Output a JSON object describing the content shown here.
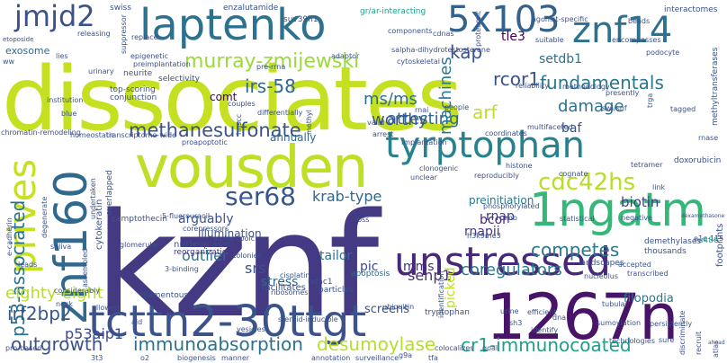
{
  "words": [
    "kznf",
    "dissociates",
    "vousden",
    "1267n",
    "tcttn2-30ttgt",
    "znf160",
    "laptenko",
    "1ngatm",
    "unstressed",
    "tyrptophan",
    "prives",
    "5x103",
    "znf14",
    "jmjd2",
    "ser68",
    "cdc42hs",
    "murray-zmijewski",
    "irs-58",
    "methanesulfonate",
    "p53-associated",
    "immunoabsorption",
    "desumoylase",
    "cr1-immunocoated",
    "outgrowth",
    "irf2bp2",
    "eighty-eight",
    "coregulators",
    "competes",
    "fundamentals",
    "rcor1",
    "kap",
    "tle3",
    "setdb1",
    "attesting",
    "worthy",
    "ms/ms",
    "machines",
    "arf",
    "damage",
    "baf",
    "biotin",
    "senp1",
    "p53aip1",
    "krab-type",
    "arguably",
    "outlier",
    "srs",
    "stress",
    "tailor",
    "pic",
    "mms",
    "bcor",
    "rnap",
    "rnapii",
    "picked",
    "preinitiation",
    "n1e-115",
    "filopodia",
    "screens",
    "comt",
    "annually",
    "illumination",
    "nucleoplasm",
    "reorganization",
    "hdac1",
    "apoptosis",
    "particles",
    "facilitates",
    "filamentous",
    "exosome",
    "etoposide",
    "swiss",
    "enzalutamide",
    "suv39h1",
    "gr/ar-interacting",
    "interactomes",
    "methyltransferases",
    "doxorubicin",
    "ru486",
    "footprints",
    "landscapes",
    "demethylases",
    "thousands",
    "tubular",
    "sumoylation",
    "persistently",
    "sh3",
    "tryptophan",
    "identification",
    "efficient",
    "nucleolus",
    "accepted",
    "transcribed",
    "negative",
    "dexamethasone",
    "link",
    "tetramer",
    "cognate",
    "histone",
    "reproducibly",
    "multifaceted",
    "coordinates",
    "h3k9me3",
    "phosphorylated",
    "clonogenic",
    "unclear",
    "implantation",
    "rnai",
    "arrest",
    "valid",
    "swi/snf",
    "tagged",
    "presently",
    "methodology",
    "trga",
    "people",
    "reliability",
    "podocyte",
    "encompasses",
    "suitable",
    "beads",
    "agonist-specific",
    "cytoskeletal",
    "salpha-dihydrotestosterone",
    "adaptor",
    "epigenetic",
    "components",
    "proteomic",
    "cdnas",
    "preimplantation",
    "pre-rrna",
    "lies",
    "releasing",
    "replace",
    "suppressor",
    "neurite",
    "selectivity",
    "top-scoring",
    "conjunction",
    "urinary",
    "ww",
    "institution",
    "blue",
    "chromatin-remodeling",
    "homeostatic",
    "transcriptome-wide",
    "proapoptotic",
    "hnscc",
    "methyl",
    "differentially",
    "couples",
    "degenerate",
    "camptothecin",
    "saliva",
    "cytokeratin",
    "overlapped",
    "undertaken",
    "5-fluorouracil",
    "corepressors",
    "alpha-lipoic",
    "glomerular",
    "colonies",
    "3-binding",
    "cisplatin",
    "ribosomes",
    "considerably",
    "neck",
    "allowed",
    "aid",
    "steroid-inducible",
    "vesicles",
    "manner",
    "biogenesis",
    "o2",
    "3t3",
    "pro-based",
    "e-cadherin",
    "leads",
    "assembled",
    "annotation",
    "surveillance",
    "g9a",
    "tfa",
    "goal",
    "colocalizes",
    "dna",
    "identify",
    "statistical",
    "loss",
    "urine",
    "ubiquitin",
    "technologies",
    "discriminate",
    "recruit",
    "atlas",
    "mb",
    "rnase",
    "sure",
    "ahead"
  ],
  "colors": {
    "background": "#ffffff",
    "palette": [
      "#440154",
      "#482878",
      "#3e4a89",
      "#31688e",
      "#26828e",
      "#1f9e89",
      "#35b779",
      "#6ece58",
      "#b5de2b",
      "#d2e21b",
      "#fde725"
    ]
  }
}
